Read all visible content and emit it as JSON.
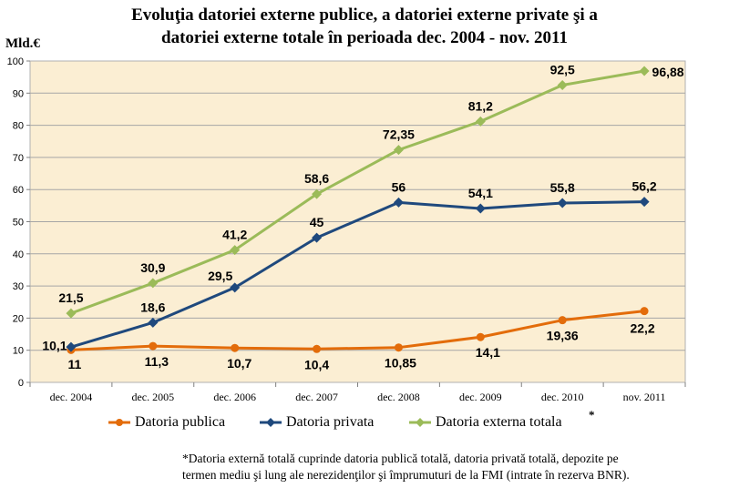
{
  "title_line1": "Evoluţia datoriei externe publice, a datoriei externe private şi a",
  "title_line2": "datoriei externe totale în perioada dec. 2004 - nov. 2011",
  "footnote_line1": "*Datoria externă totală cuprinde datoria publică totală, datoria privată totală, depozite pe",
  "footnote_line2": "termen mediu şi lung ale nerezidenţilor şi împrumuturi de la FMI (intrate în rezerva BNR).",
  "legend_star": "*",
  "colors": {
    "public": "#e36c0a",
    "private": "#1f497d",
    "total": "#9bbb59",
    "plot_bg": "#fbeed3"
  },
  "chart_data": {
    "type": "line",
    "title": "Evoluţia datoriei externe publice, a datoriei externe private şi a datoriei externe totale în perioada dec. 2004 - nov. 2011",
    "ylabel": "Mld.€",
    "xlabel": "",
    "ylim": [
      0,
      100
    ],
    "yticks": [
      0,
      10,
      20,
      30,
      40,
      50,
      60,
      70,
      80,
      90,
      100
    ],
    "categories": [
      "dec. 2004",
      "dec. 2005",
      "dec. 2006",
      "dec. 2007",
      "dec. 2008",
      "dec. 2009",
      "dec. 2010",
      "nov. 2011"
    ],
    "grid": true,
    "legend": "bottom",
    "series": [
      {
        "name": "Datoria publica",
        "key": "public",
        "values": [
          10.1,
          11.3,
          10.7,
          10.4,
          10.85,
          14.1,
          19.36,
          22.2
        ],
        "labels": [
          "10,1",
          "11,3",
          "10,7",
          "10,4",
          "10,85",
          "14,1",
          "19,36",
          "22,2"
        ]
      },
      {
        "name": "Datoria privata",
        "key": "private",
        "values": [
          11,
          18.6,
          29.5,
          45,
          56,
          54.1,
          55.8,
          56.2
        ],
        "labels": [
          "11",
          "18,6",
          "29,5",
          "45",
          "56",
          "54,1",
          "55,8",
          "56,2"
        ]
      },
      {
        "name": "Datoria externa totala",
        "key": "total",
        "values": [
          21.5,
          30.9,
          41.2,
          58.6,
          72.35,
          81.2,
          92.5,
          96.88
        ],
        "labels": [
          "21,5",
          "30,9",
          "41,2",
          "58,6",
          "72,35",
          "81,2",
          "92,5",
          "96,88"
        ]
      }
    ]
  }
}
